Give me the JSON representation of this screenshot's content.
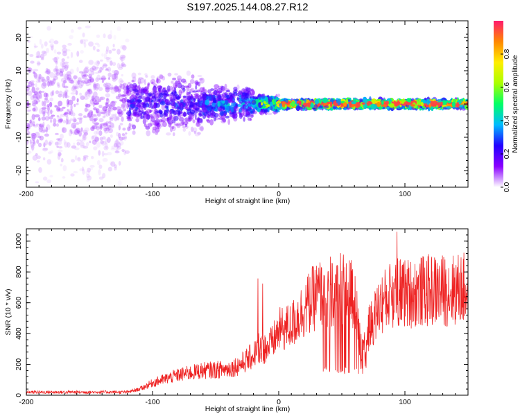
{
  "title": "S197.2025.144.08.27.R12",
  "chart_data": [
    {
      "type": "heatmap",
      "xlabel": "Height of straight line (km)",
      "ylabel": "Frequency (Hz)",
      "xlim": [
        -200,
        150
      ],
      "ylim": [
        -25,
        25
      ],
      "xticks": [
        -200,
        -100,
        0,
        100
      ],
      "yticks": [
        -20,
        -10,
        0,
        10,
        20
      ],
      "colorbar": {
        "label": "Normalized spectral amplitude",
        "range": [
          0,
          1
        ],
        "ticks": [
          "0.0",
          "0.2",
          "0.4",
          "0.6",
          "0.8"
        ],
        "stops": [
          "#ffffff",
          "#8a00ff",
          "#2200ff",
          "#00bbff",
          "#00ff66",
          "#aaff00",
          "#ffee00",
          "#ff8800",
          "#ff1a6e"
        ]
      },
      "regions": [
        {
          "x_range": [
            -200,
            -120
          ],
          "freq_spread": 25,
          "amplitude": 0.1
        },
        {
          "x_range": [
            -120,
            -60
          ],
          "freq_spread": 10,
          "amplitude": 0.25
        },
        {
          "x_range": [
            -60,
            -20
          ],
          "freq_spread": 6,
          "amplitude": 0.35
        },
        {
          "x_range": [
            -20,
            0
          ],
          "freq_spread": 3,
          "amplitude": 0.6
        },
        {
          "x_range": [
            0,
            150
          ],
          "freq_spread": 1.5,
          "center_freq": 0,
          "amplitude": 0.9
        }
      ]
    },
    {
      "type": "line",
      "xlabel": "Height of straight line (km)",
      "ylabel": "SNR (10 * v/v)",
      "xlim": [
        -200,
        150
      ],
      "ylim": [
        0,
        1080
      ],
      "xticks": [
        -200,
        -100,
        0,
        100
      ],
      "yticks": [
        0,
        200,
        400,
        600,
        800,
        1000
      ],
      "color": "#ee2222",
      "series_profile": {
        "x": [
          -200,
          -150,
          -120,
          -110,
          -100,
          -80,
          -60,
          -40,
          -30,
          -20,
          -15,
          -10,
          -5,
          0,
          10,
          20,
          30,
          40,
          50,
          60,
          65,
          70,
          80,
          90,
          100,
          110,
          120,
          130,
          150
        ],
        "y": [
          20,
          20,
          20,
          40,
          80,
          130,
          160,
          170,
          200,
          260,
          320,
          300,
          340,
          420,
          450,
          560,
          650,
          680,
          690,
          640,
          300,
          400,
          580,
          660,
          660,
          670,
          680,
          680,
          690
        ]
      }
    }
  ]
}
